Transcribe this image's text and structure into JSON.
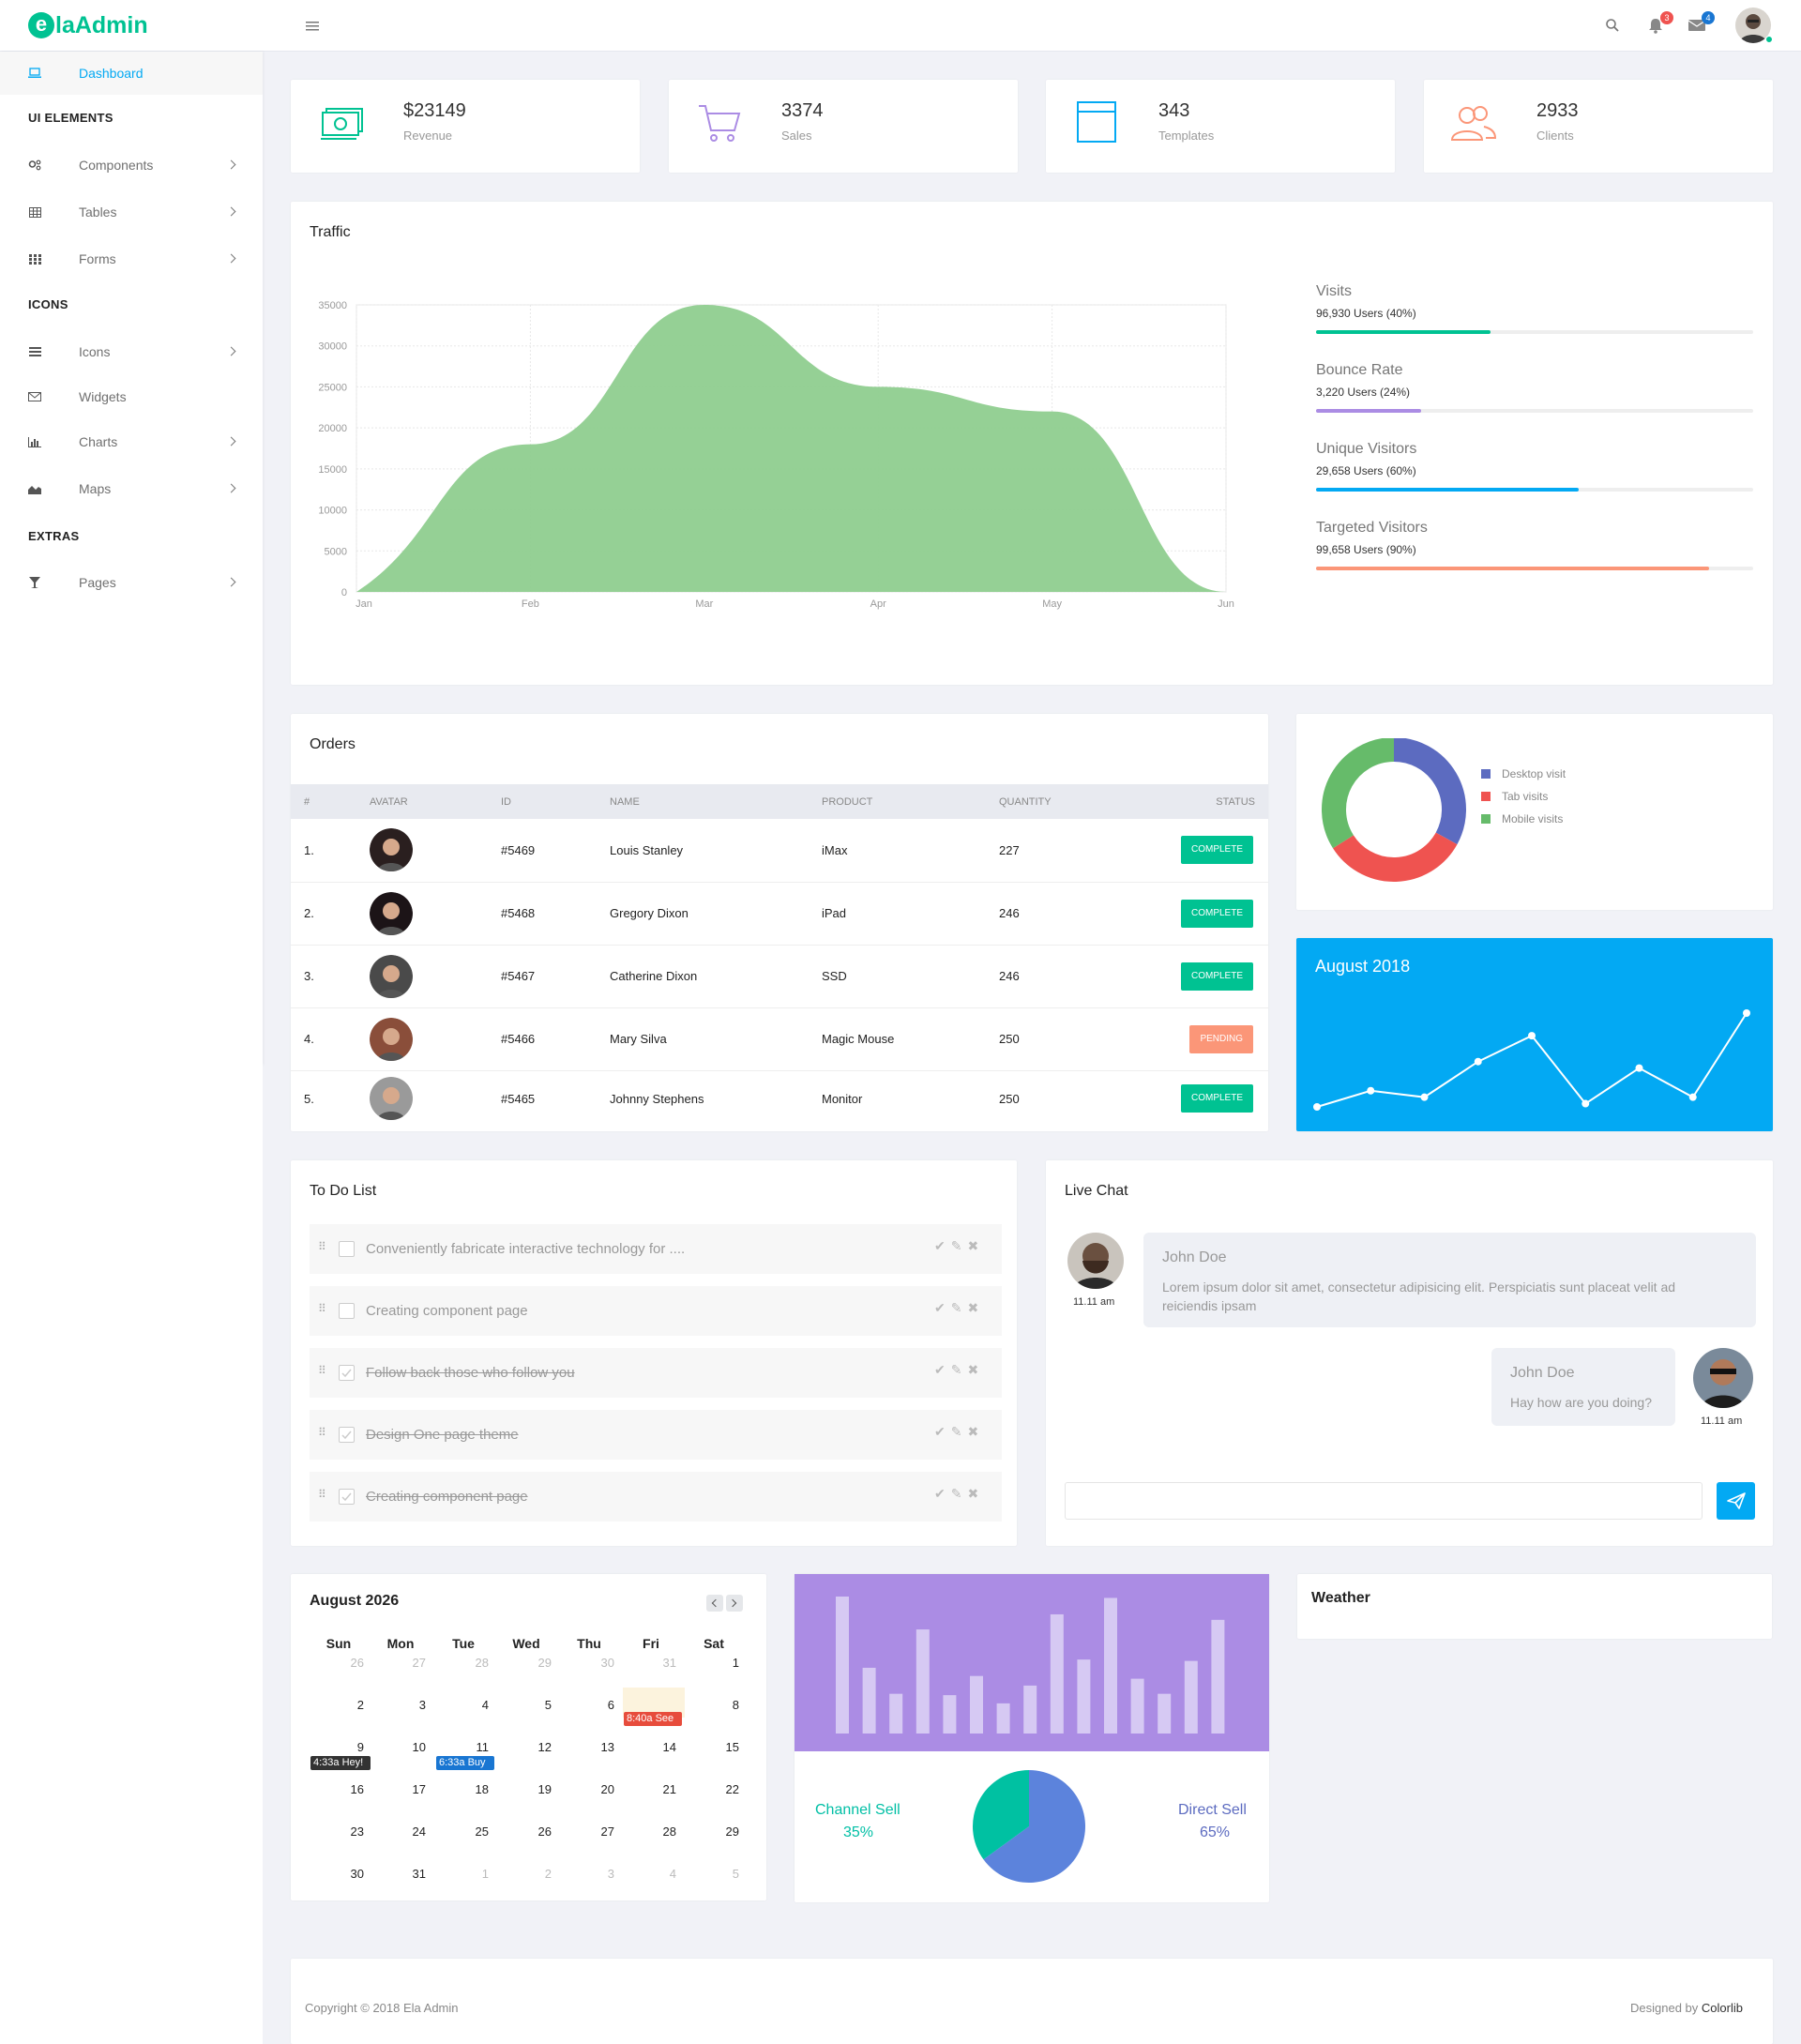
{
  "brand": {
    "logo_letter": "e",
    "logo_text": "laAdmin"
  },
  "topbar": {
    "notif_count": "3",
    "mail_count": "4"
  },
  "sidebar": {
    "dashboard": "Dashboard",
    "sec_ui": "UI ELEMENTS",
    "components": "Components",
    "tables": "Tables",
    "forms": "Forms",
    "sec_icons": "ICONS",
    "icons": "Icons",
    "widgets": "Widgets",
    "charts": "Charts",
    "maps": "Maps",
    "sec_extras": "EXTRAS",
    "pages": "Pages"
  },
  "stats": [
    {
      "value": "$23149",
      "label": "Revenue"
    },
    {
      "value": "3374",
      "label": "Sales"
    },
    {
      "value": "343",
      "label": "Templates"
    },
    {
      "value": "2933",
      "label": "Clients"
    }
  ],
  "traffic": {
    "title": "Traffic",
    "progress": [
      {
        "label": "Visits",
        "sub": "96,930 Users (40%)",
        "pct": 40,
        "color": "#00c292"
      },
      {
        "label": "Bounce Rate",
        "sub": "3,220 Users (24%)",
        "pct": 24,
        "color": "#ab8ce4"
      },
      {
        "label": "Unique Visitors",
        "sub": "29,658 Users (60%)",
        "pct": 60,
        "color": "#03a9f3"
      },
      {
        "label": "Targeted Visitors",
        "sub": "99,658 Users (90%)",
        "pct": 90,
        "color": "#fb9678"
      }
    ]
  },
  "chart_data": [
    {
      "type": "area",
      "title": "Traffic",
      "x": [
        "Jan",
        "Feb",
        "Mar",
        "Apr",
        "May",
        "Jun"
      ],
      "values": [
        0,
        18000,
        35000,
        25000,
        22000,
        0
      ],
      "ylim": [
        0,
        35000
      ],
      "yticks": [
        0,
        5000,
        10000,
        15000,
        20000,
        25000,
        30000,
        35000
      ],
      "color": "#8fce8f",
      "grid": true
    },
    {
      "type": "pie",
      "variant": "donut",
      "labels": [
        "Desktop visit",
        "Tab visits",
        "Mobile visits"
      ],
      "values": [
        33,
        33,
        34
      ],
      "colors": [
        "#5c6bc0",
        "#ef5350",
        "#66bb6a"
      ],
      "legend": "right"
    },
    {
      "type": "line",
      "title": "August 2018",
      "values": [
        0,
        5,
        3,
        14,
        22,
        1,
        12,
        3,
        29
      ],
      "color": "#ffffff",
      "background": "#03a9f3"
    },
    {
      "type": "bar",
      "values": [
        100,
        48,
        29,
        76,
        28,
        42,
        22,
        35,
        87,
        54,
        99,
        40,
        29,
        53,
        83
      ],
      "ylim": [
        0,
        100
      ],
      "color": "#d6c9f3",
      "background": "#ab8ce4"
    },
    {
      "type": "pie",
      "labels": [
        "Channel Sell",
        "Direct Sell"
      ],
      "values": [
        35,
        65
      ],
      "colors": [
        "#00c1a2",
        "#5c83dc"
      ]
    }
  ],
  "orders": {
    "title": "Orders",
    "columns": [
      "#",
      "AVATAR",
      "ID",
      "NAME",
      "PRODUCT",
      "QUANTITY",
      "STATUS"
    ],
    "rows": [
      {
        "num": "1.",
        "id": "#5469",
        "name": "Louis Stanley",
        "product": "iMax",
        "qty": "227",
        "status": "COMPLETE",
        "status_color": "#00c292",
        "avatar_bg": "#2a1f1f"
      },
      {
        "num": "2.",
        "id": "#5468",
        "name": "Gregory Dixon",
        "product": "iPad",
        "qty": "246",
        "status": "COMPLETE",
        "status_color": "#00c292",
        "avatar_bg": "#1c1417"
      },
      {
        "num": "3.",
        "id": "#5467",
        "name": "Catherine Dixon",
        "product": "SSD",
        "qty": "246",
        "status": "COMPLETE",
        "status_color": "#00c292",
        "avatar_bg": "#4a4a4a"
      },
      {
        "num": "4.",
        "id": "#5466",
        "name": "Mary Silva",
        "product": "Magic Mouse",
        "qty": "250",
        "status": "PENDING",
        "status_color": "#fb9678",
        "avatar_bg": "#8a4e3a"
      },
      {
        "num": "5.",
        "id": "#5465",
        "name": "Johnny Stephens",
        "product": "Monitor",
        "qty": "250",
        "status": "COMPLETE",
        "status_color": "#00c292",
        "avatar_bg": "#9a9a9a"
      }
    ]
  },
  "donut_legend": [
    "Desktop visit",
    "Tab visits",
    "Mobile visits"
  ],
  "line_widget": {
    "title": "August 2018"
  },
  "todo": {
    "title": "To Do List",
    "items": [
      {
        "text": "Conveniently fabricate interactive technology for ....",
        "done": false
      },
      {
        "text": "Creating component page",
        "done": false
      },
      {
        "text": "Follow back those who follow you",
        "done": true
      },
      {
        "text": "Design One page theme",
        "done": true
      },
      {
        "text": "Creating component page",
        "done": true
      }
    ]
  },
  "chat": {
    "title": "Live Chat",
    "messages": [
      {
        "name": "John Doe",
        "text": "Lorem ipsum dolor sit amet, consectetur adipisicing elit. Perspiciatis sunt placeat velit ad reiciendis ipsam",
        "time": "11.11 am"
      },
      {
        "name": "John Doe",
        "text": "Hay how are you doing?",
        "time": "11.11 am"
      }
    ],
    "input_placeholder": ""
  },
  "calendar": {
    "title": "August 2026",
    "days": [
      "Sun",
      "Mon",
      "Tue",
      "Wed",
      "Thu",
      "Fri",
      "Sat"
    ],
    "weeks": [
      [
        "26",
        "27",
        "28",
        "29",
        "30",
        "31",
        "1"
      ],
      [
        "2",
        "3",
        "4",
        "5",
        "6",
        "7",
        "8"
      ],
      [
        "9",
        "10",
        "11",
        "12",
        "13",
        "14",
        "15"
      ],
      [
        "16",
        "17",
        "18",
        "19",
        "20",
        "21",
        "22"
      ],
      [
        "23",
        "24",
        "25",
        "26",
        "27",
        "28",
        "29"
      ],
      [
        "30",
        "31",
        "1",
        "2",
        "3",
        "4",
        "5"
      ]
    ],
    "events": [
      {
        "label": "8:40a See",
        "color": "#e74c3c"
      },
      {
        "label": "4:33a Hey!",
        "color": "#333333"
      },
      {
        "label": "6:33a Buy",
        "color": "#1976d2"
      }
    ]
  },
  "sell": {
    "channel_label": "Channel Sell",
    "channel_pct": "35%",
    "direct_label": "Direct Sell",
    "direct_pct": "65%"
  },
  "weather": {
    "title": "Weather"
  },
  "footer": {
    "copyright": "Copyright © 2018 Ela Admin",
    "designed_by": "Designed by",
    "designer": "Colorlib"
  }
}
